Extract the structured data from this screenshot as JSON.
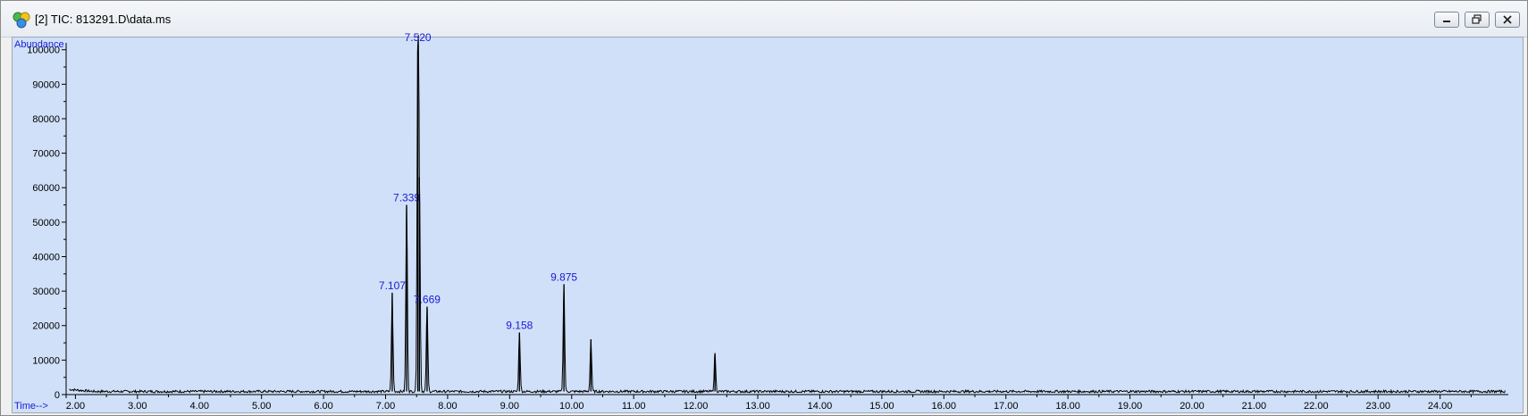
{
  "window": {
    "title": "[2] TIC: 813291.D\\data.ms",
    "icon": "chromatogram-app-icon"
  },
  "colors": {
    "plot_background": "#cfe0f8",
    "trace": "#000000",
    "peak_label": "#1a1ad6"
  },
  "chart_data": {
    "type": "line",
    "ylabel": "Abundance",
    "xlabel": "Time-->",
    "xlim": [
      1.85,
      25.1
    ],
    "ylim": [
      0,
      102000
    ],
    "x_ticks": [
      "2.00",
      "3.00",
      "4.00",
      "5.00",
      "6.00",
      "7.00",
      "8.00",
      "9.00",
      "10.00",
      "11.00",
      "12.00",
      "13.00",
      "14.00",
      "15.00",
      "16.00",
      "17.00",
      "18.00",
      "19.00",
      "20.00",
      "21.00",
      "22.00",
      "23.00",
      "24.00"
    ],
    "y_ticks": [
      "0",
      "10000",
      "20000",
      "30000",
      "40000",
      "50000",
      "60000",
      "70000",
      "80000",
      "90000",
      "100000"
    ],
    "baseline": 900,
    "peaks": [
      {
        "time": 7.107,
        "abundance": 29500,
        "label": "7.107"
      },
      {
        "time": 7.339,
        "abundance": 55000,
        "label": "7.339"
      },
      {
        "time": 7.52,
        "abundance": 101500,
        "label": "7.520"
      },
      {
        "time": 7.545,
        "abundance": 63000,
        "label": ""
      },
      {
        "time": 7.669,
        "abundance": 25500,
        "label": "7.669"
      },
      {
        "time": 9.158,
        "abundance": 18000,
        "label": "9.158"
      },
      {
        "time": 9.875,
        "abundance": 32000,
        "label": "9.875"
      },
      {
        "time": 10.31,
        "abundance": 16000,
        "label": ""
      },
      {
        "time": 12.31,
        "abundance": 12000,
        "label": ""
      }
    ]
  }
}
